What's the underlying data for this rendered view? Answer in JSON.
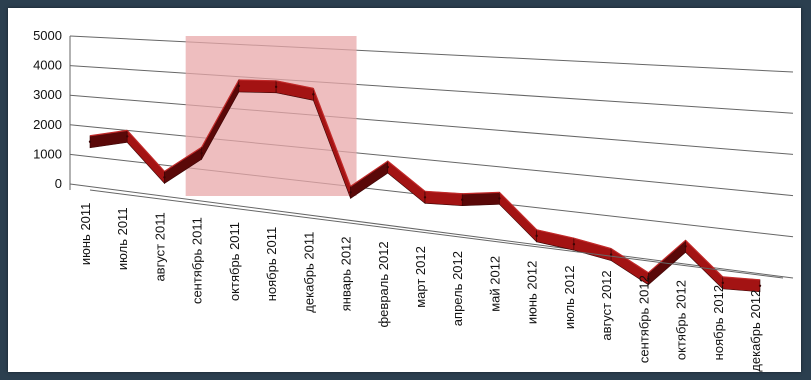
{
  "chart_data": {
    "type": "line",
    "style": "3d-ribbon",
    "categories": [
      "июнь 2011",
      "июль 2011",
      "август 2011",
      "сентябрь 2011",
      "октябрь 2011",
      "ноябрь 2011",
      "декабрь 2011",
      "январь 2012",
      "февраль 2012",
      "март 2012",
      "апрель 2012",
      "май 2012",
      "июнь 2012",
      "июль 2012",
      "август 2012",
      "сентябрь 2012",
      "октябрь 2012",
      "ноябрь 2012",
      "декабрь 2012"
    ],
    "values": [
      1700,
      2000,
      800,
      1700,
      3900,
      3950,
      3800,
      1000,
      1850,
      1100,
      1150,
      1300,
      400,
      300,
      150,
      -350,
      600,
      -200,
      -150
    ],
    "ylim": [
      0,
      5000
    ],
    "yticks": [
      "5000",
      "4000",
      "3000",
      "2000",
      "1000",
      "0"
    ],
    "grid": true,
    "highlight": {
      "from": "сентябрь 2011",
      "to": "январь 2012"
    },
    "colors": {
      "ribbon_top": "#a31313",
      "ribbon_side": "#5a0808",
      "highlight": "#e8a8aa",
      "grid": "#666666"
    }
  }
}
